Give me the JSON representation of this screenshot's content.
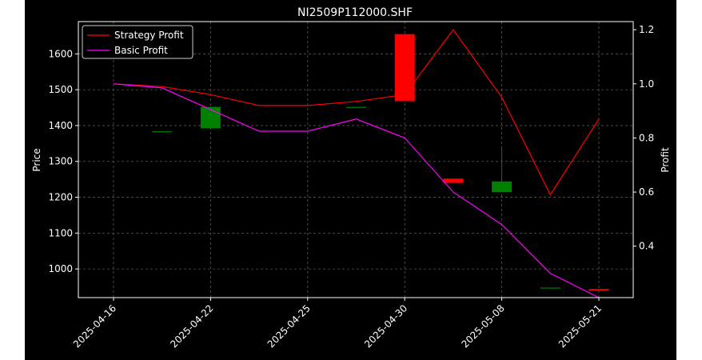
{
  "chart_data": {
    "type": "line",
    "title": "NI2509P112000.SHF",
    "xlabel": "",
    "ylabel": "Price",
    "ylabel_right": "Profit",
    "x": [
      "2025-04-16",
      "2025-04-18",
      "2025-04-22",
      "2025-04-23",
      "2025-04-25",
      "2025-04-28",
      "2025-04-30",
      "2025-05-06",
      "2025-05-08",
      "2025-05-13",
      "2025-05-21"
    ],
    "xticks": [
      "2025-04-16",
      "2025-04-22",
      "2025-04-25",
      "2025-04-30",
      "2025-05-08",
      "2025-05-21"
    ],
    "ylim_left": [
      920,
      1690
    ],
    "yticks_left": [
      1000,
      1100,
      1200,
      1300,
      1400,
      1500,
      1600
    ],
    "ylim_right": [
      0.21,
      1.23
    ],
    "yticks_right": [
      0.4,
      0.6,
      0.8,
      1.0,
      1.2
    ],
    "grid": true,
    "legend_position": "top-left",
    "candles": [
      {
        "date": "2025-04-18",
        "open": 1384,
        "high": 1384,
        "low": 1384,
        "close": 1384
      },
      {
        "date": "2025-04-22",
        "open": 1392,
        "high": 1452,
        "low": 1392,
        "close": 1452
      },
      {
        "date": "2025-04-28",
        "open": 1452,
        "high": 1452,
        "low": 1452,
        "close": 1452
      },
      {
        "date": "2025-04-30",
        "open": 1655,
        "high": 1655,
        "low": 1468,
        "close": 1468
      },
      {
        "date": "2025-05-06",
        "open": 1252,
        "high": 1252,
        "low": 1240,
        "close": 1240
      },
      {
        "date": "2025-05-08",
        "open": 1214,
        "high": 1342,
        "low": 1214,
        "close": 1244
      },
      {
        "date": "2025-05-13",
        "open": 948,
        "high": 948,
        "low": 948,
        "close": 948
      },
      {
        "date": "2025-05-21",
        "open": 944,
        "high": 944,
        "low": 940,
        "close": 940
      }
    ],
    "series": [
      {
        "name": "Strategy Profit",
        "color": "#ff0000",
        "axis": "right",
        "values": [
          1.0,
          0.99,
          0.96,
          0.92,
          0.92,
          0.935,
          0.96,
          1.2,
          0.95,
          0.59,
          0.87
        ]
      },
      {
        "name": "Basic Profit",
        "color": "#ff00ff",
        "axis": "right",
        "values": [
          1.0,
          0.985,
          0.905,
          0.825,
          0.825,
          0.87,
          0.8,
          0.6,
          0.48,
          0.3,
          0.21
        ]
      }
    ],
    "colors": {
      "up": "#008000",
      "down": "#ff0000",
      "background": "#000000",
      "foreground": "#ffffff"
    }
  }
}
